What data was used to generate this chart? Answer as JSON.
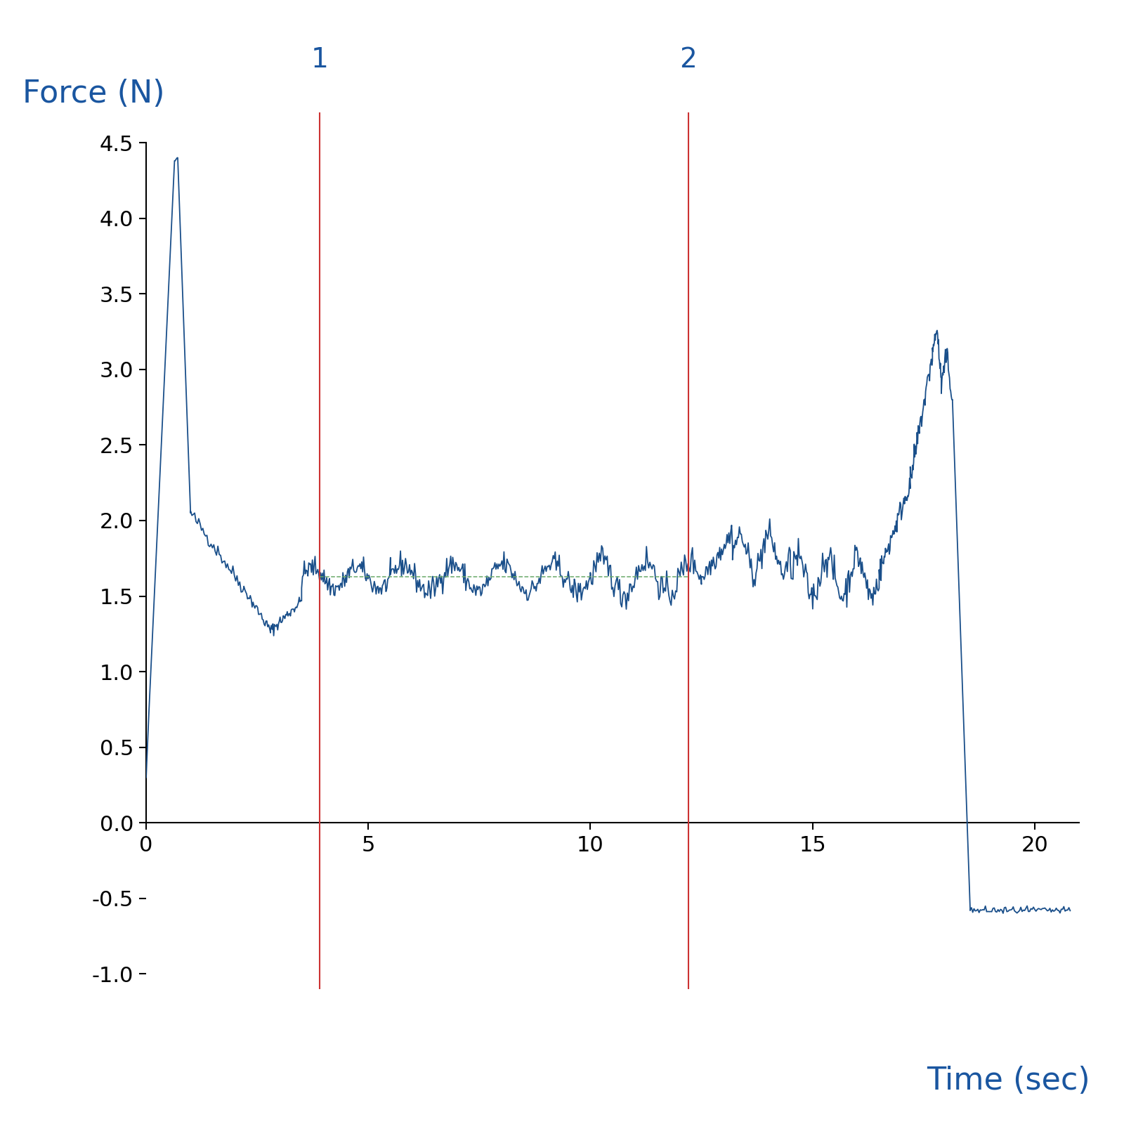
{
  "title_y": "Force (N)",
  "title_x": "Time (sec)",
  "title_color": "#1a56a0",
  "line_color": "#1a4f8a",
  "vline_color": "#cc3333",
  "hline_color": "#6aaa6a",
  "vline1_x": 3.9,
  "vline2_x": 12.2,
  "vline1_label": "1",
  "vline2_label": "2",
  "hline_y": 1.63,
  "xlim": [
    0,
    21
  ],
  "ylim": [
    -1.1,
    4.7
  ],
  "data_ymin": -1.0,
  "data_ymax": 4.5,
  "xticks": [
    0,
    5,
    10,
    15,
    20
  ],
  "yticks": [
    -1.0,
    -0.5,
    0.0,
    0.5,
    1.0,
    1.5,
    2.0,
    2.5,
    3.0,
    3.5,
    4.0,
    4.5
  ],
  "seed": 42,
  "figsize": [
    16,
    16
  ],
  "dpi": 100
}
